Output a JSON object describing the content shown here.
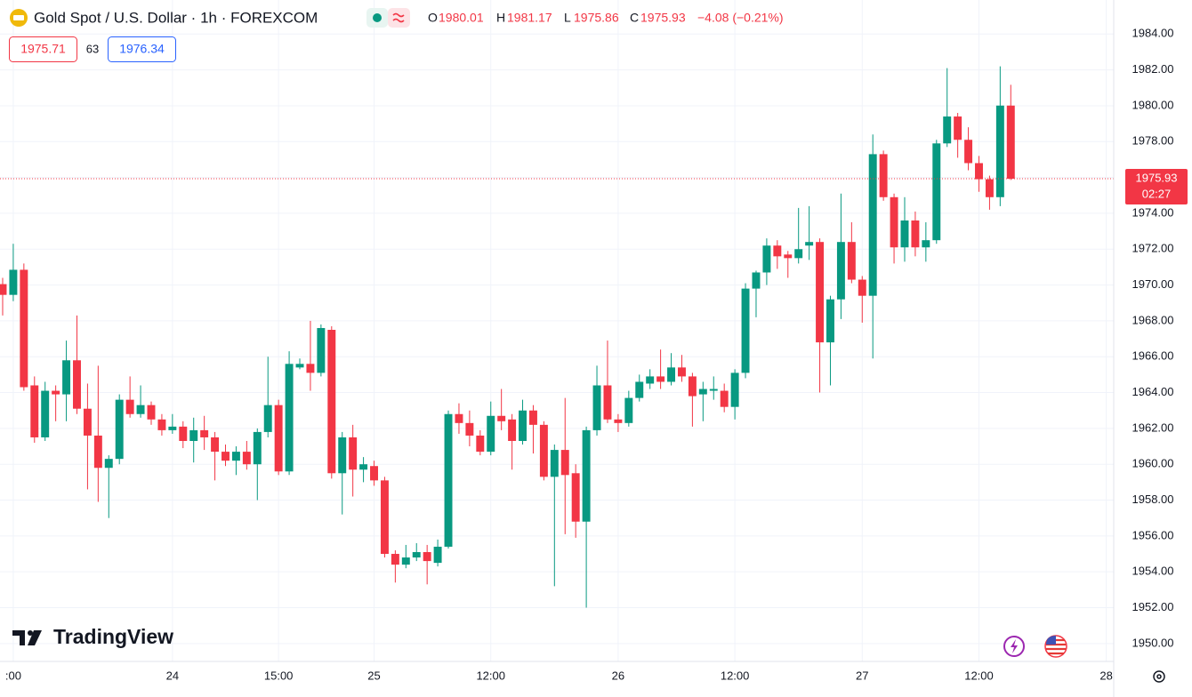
{
  "chart_data": {
    "type": "candlestick",
    "title": "Gold Spot / U.S. Dollar · 1h · FOREXCOM",
    "ohlc_labels": [
      "O",
      "H",
      "L",
      "C"
    ],
    "change": "−4.08 (−0.21%)",
    "bid": "1975.71",
    "spread": "63",
    "ask": "1976.34",
    "countdown": "02:27",
    "brand": "TradingView",
    "up_color": "#089981",
    "down_color": "#f23645",
    "grid": true,
    "last_price_line": true,
    "xlim": [
      -0.25,
      104.7
    ],
    "xticks": [
      {
        "value": 1,
        "label": ":00"
      },
      {
        "value": 16,
        "label": "24"
      },
      {
        "value": 26,
        "label": "15:00"
      },
      {
        "value": 35,
        "label": "25"
      },
      {
        "value": 46,
        "label": "12:00"
      },
      {
        "value": 58,
        "label": "26"
      },
      {
        "value": 69,
        "label": "12:00"
      },
      {
        "value": 81,
        "label": "27"
      },
      {
        "value": 92,
        "label": "12:00"
      },
      {
        "value": 104,
        "label": "28"
      }
    ],
    "ylim": [
      1949.0,
      1985.9
    ],
    "yticks": [
      {
        "value": 1950,
        "label": "1950.00"
      },
      {
        "value": 1952,
        "label": "1952.00"
      },
      {
        "value": 1954,
        "label": "1954.00"
      },
      {
        "value": 1956,
        "label": "1956.00"
      },
      {
        "value": 1958,
        "label": "1958.00"
      },
      {
        "value": 1960,
        "label": "1960.00"
      },
      {
        "value": 1962,
        "label": "1962.00"
      },
      {
        "value": 1964,
        "label": "1964.00"
      },
      {
        "value": 1966,
        "label": "1966.00"
      },
      {
        "value": 1968,
        "label": "1968.00"
      },
      {
        "value": 1970,
        "label": "1970.00"
      },
      {
        "value": 1972,
        "label": "1972.00"
      },
      {
        "value": 1974,
        "label": "1974.00"
      },
      {
        "value": 1976,
        "label": "1976.00"
      },
      {
        "value": 1978,
        "label": "1978.00"
      },
      {
        "value": 1980,
        "label": "1980.00"
      },
      {
        "value": 1982,
        "label": "1982.00"
      },
      {
        "value": 1984,
        "label": "1984.00"
      }
    ],
    "open": [
      1970.05,
      1969.45,
      1970.85,
      1964.4,
      1961.5,
      1964.1,
      1963.9,
      1965.8,
      1963.1,
      1961.6,
      1959.8,
      1960.3,
      1963.6,
      1962.8,
      1963.3,
      1962.5,
      1961.9,
      1962.1,
      1961.3,
      1961.9,
      1961.5,
      1960.7,
      1960.2,
      1960.7,
      1960.0,
      1961.8,
      1963.3,
      1959.6,
      1965.4,
      1965.6,
      1965.1,
      1967.5,
      1959.5,
      1961.5,
      1959.7,
      1959.9,
      1959.1,
      1955.0,
      1954.4,
      1954.8,
      1955.1,
      1954.5,
      1955.4,
      1962.8,
      1962.3,
      1961.6,
      1960.7,
      1962.7,
      1962.5,
      1961.3,
      1963.0,
      1962.2,
      1959.3,
      1960.8,
      1959.5,
      1956.8,
      1961.9,
      1964.4,
      1962.5,
      1962.3,
      1963.7,
      1964.5,
      1964.9,
      1964.6,
      1965.4,
      1964.9,
      1963.9,
      1964.1,
      1964.1,
      1963.2,
      1965.1,
      1969.8,
      1970.7,
      1972.2,
      1971.7,
      1971.5,
      1972.2,
      1972.4,
      1966.8,
      1969.2,
      1972.4,
      1970.3,
      1969.4,
      1977.3,
      1974.9,
      1972.1,
      1973.6,
      1972.1,
      1972.5,
      1977.9,
      1979.4,
      1978.1,
      1976.8,
      1975.9,
      1974.9,
      1980.01
    ],
    "high": [
      1970.4,
      1972.3,
      1971.2,
      1964.9,
      1964.6,
      1964.4,
      1966.9,
      1968.3,
      1964.5,
      1965.5,
      1960.5,
      1963.9,
      1964.9,
      1964.4,
      1963.5,
      1962.8,
      1962.8,
      1962.4,
      1962.6,
      1962.7,
      1961.8,
      1961.1,
      1961.0,
      1961.3,
      1962.0,
      1966.0,
      1963.6,
      1966.3,
      1965.9,
      1968.0,
      1967.8,
      1967.7,
      1961.8,
      1962.2,
      1960.4,
      1960.2,
      1959.3,
      1955.2,
      1955.5,
      1955.6,
      1955.5,
      1955.8,
      1963.0,
      1963.4,
      1963.0,
      1961.9,
      1963.5,
      1964.2,
      1962.8,
      1963.6,
      1963.3,
      1962.4,
      1961.1,
      1963.7,
      1960.0,
      1962.1,
      1965.5,
      1966.9,
      1962.8,
      1964.1,
      1965.0,
      1965.3,
      1966.4,
      1966.2,
      1966.1,
      1965.1,
      1964.6,
      1964.9,
      1964.5,
      1965.3,
      1970.1,
      1970.8,
      1972.6,
      1972.5,
      1971.9,
      1974.3,
      1974.4,
      1972.6,
      1969.4,
      1975.1,
      1973.5,
      1970.5,
      1978.4,
      1977.5,
      1975.1,
      1974.9,
      1974.1,
      1973.5,
      1978.1,
      1982.1,
      1979.6,
      1978.8,
      1977.2,
      1976.1,
      1982.2,
      1981.17
    ],
    "low": [
      1968.3,
      1969.1,
      1964.1,
      1961.2,
      1961.3,
      1962.4,
      1962.4,
      1962.8,
      1958.6,
      1957.9,
      1957.0,
      1960.0,
      1962.6,
      1962.6,
      1962.2,
      1961.6,
      1961.7,
      1960.9,
      1960.1,
      1960.8,
      1959.1,
      1959.9,
      1959.4,
      1959.7,
      1958.0,
      1961.5,
      1959.4,
      1959.4,
      1965.3,
      1964.1,
      1964.9,
      1959.2,
      1957.2,
      1958.2,
      1959.0,
      1958.8,
      1954.8,
      1953.4,
      1954.2,
      1954.6,
      1953.3,
      1954.3,
      1955.3,
      1961.7,
      1961.0,
      1960.5,
      1960.5,
      1961.9,
      1959.7,
      1961.1,
      1960.6,
      1959.1,
      1953.2,
      1956.1,
      1955.9,
      1952.0,
      1961.6,
      1962.3,
      1961.8,
      1962.1,
      1963.5,
      1964.2,
      1964.2,
      1964.4,
      1964.6,
      1962.1,
      1962.4,
      1963.6,
      1962.9,
      1962.5,
      1964.8,
      1968.2,
      1970.0,
      1970.9,
      1970.4,
      1971.2,
      1971.4,
      1964.0,
      1964.4,
      1968.1,
      1970.1,
      1967.9,
      1965.9,
      1974.7,
      1971.2,
      1971.3,
      1971.6,
      1971.3,
      1972.3,
      1977.7,
      1977.1,
      1976.4,
      1975.2,
      1974.2,
      1974.4,
      1975.86
    ],
    "close": [
      1969.45,
      1970.85,
      1964.3,
      1961.5,
      1964.1,
      1963.9,
      1965.8,
      1963.1,
      1961.6,
      1959.8,
      1960.3,
      1963.6,
      1962.8,
      1963.3,
      1962.5,
      1961.9,
      1962.1,
      1961.3,
      1961.9,
      1961.5,
      1960.7,
      1960.2,
      1960.7,
      1960.0,
      1961.8,
      1963.3,
      1959.6,
      1965.6,
      1965.6,
      1965.1,
      1967.6,
      1959.5,
      1961.5,
      1959.7,
      1960.0,
      1959.1,
      1955.0,
      1954.4,
      1954.8,
      1955.1,
      1954.6,
      1955.4,
      1962.8,
      1962.3,
      1961.6,
      1960.7,
      1962.7,
      1962.4,
      1961.3,
      1963.0,
      1962.2,
      1959.3,
      1960.8,
      1959.4,
      1956.8,
      1961.9,
      1964.4,
      1962.5,
      1962.3,
      1963.7,
      1964.6,
      1964.9,
      1964.6,
      1965.4,
      1964.9,
      1963.8,
      1964.2,
      1964.2,
      1963.2,
      1965.1,
      1969.8,
      1970.7,
      1972.2,
      1971.6,
      1971.5,
      1972.0,
      1972.4,
      1966.8,
      1969.2,
      1972.4,
      1970.3,
      1969.4,
      1977.3,
      1974.9,
      1972.1,
      1973.6,
      1972.1,
      1972.5,
      1977.9,
      1979.4,
      1978.1,
      1976.8,
      1975.9,
      1974.9,
      1980.01,
      1975.93
    ]
  }
}
